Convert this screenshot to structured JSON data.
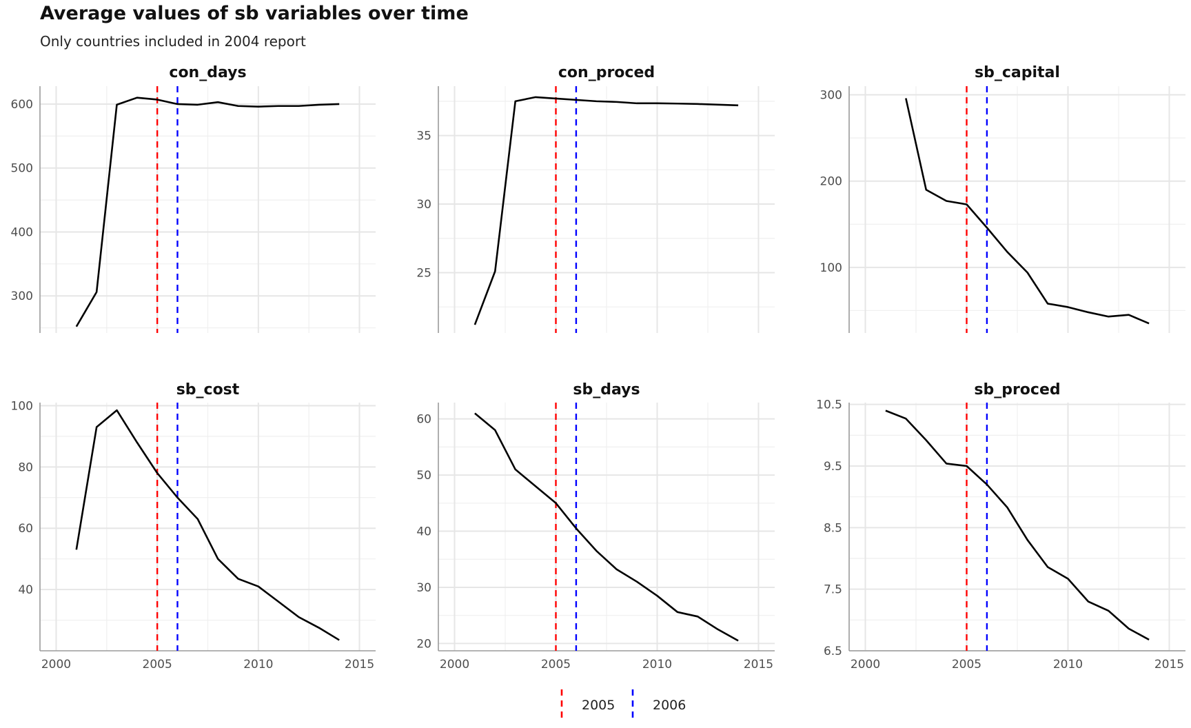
{
  "title": "Average values of sb variables over time",
  "subtitle": "Only countries included in 2004 report",
  "legend": {
    "entries": [
      {
        "label": "2005",
        "color": "#ff0000"
      },
      {
        "label": "2006",
        "color": "#0000ff"
      }
    ],
    "placement": "bottom"
  },
  "chart_data": [
    {
      "type": "line",
      "title": "con_days",
      "x": [
        2001,
        2002,
        2003,
        2004,
        2005,
        2006,
        2007,
        2008,
        2009,
        2010,
        2011,
        2012,
        2013,
        2014
      ],
      "y": [
        252,
        306,
        599,
        610,
        607,
        600,
        599,
        603,
        597,
        596,
        597,
        597,
        599,
        600
      ],
      "xlim": [
        1999.2,
        2015.8
      ],
      "ylim": [
        242,
        628
      ],
      "xticks": [
        2000,
        2005,
        2010,
        2015
      ],
      "xticklabels": [
        "2000",
        "2005",
        "2010",
        "2015"
      ],
      "yticks": [
        300,
        400,
        500,
        600
      ],
      "yticklabels": [
        "300",
        "400",
        "500",
        "600"
      ],
      "vlines": [
        2005,
        2006
      ],
      "grid": true
    },
    {
      "type": "line",
      "title": "con_proced",
      "x": [
        2001,
        2002,
        2003,
        2004,
        2005,
        2006,
        2007,
        2008,
        2009,
        2010,
        2011,
        2012,
        2013,
        2014
      ],
      "y": [
        21.2,
        25.1,
        37.5,
        37.8,
        37.7,
        37.6,
        37.5,
        37.45,
        37.35,
        37.35,
        37.33,
        37.3,
        37.25,
        37.2
      ],
      "xlim": [
        1999.2,
        2015.8
      ],
      "ylim": [
        20.6,
        38.6
      ],
      "xticks": [
        2000,
        2005,
        2010,
        2015
      ],
      "xticklabels": [
        "2000",
        "2005",
        "2010",
        "2015"
      ],
      "yticks": [
        25,
        30,
        35
      ],
      "yticklabels": [
        "25",
        "30",
        "35"
      ],
      "vlines": [
        2005,
        2006
      ],
      "grid": true
    },
    {
      "type": "line",
      "title": "sb_capital",
      "x": [
        2002,
        2003,
        2004,
        2005,
        2006,
        2007,
        2008,
        2009,
        2010,
        2011,
        2012,
        2013,
        2014
      ],
      "y": [
        296,
        190,
        177,
        173,
        146,
        118,
        94,
        58,
        54,
        48,
        43,
        45,
        35
      ],
      "xlim": [
        1999.2,
        2015.8
      ],
      "ylim": [
        24,
        310
      ],
      "xticks": [
        2000,
        2005,
        2010,
        2015
      ],
      "xticklabels": [
        "2000",
        "2005",
        "2010",
        "2015"
      ],
      "yticks": [
        100,
        200,
        300
      ],
      "yticklabels": [
        "100",
        "200",
        "300"
      ],
      "vlines": [
        2005,
        2006
      ],
      "grid": true
    },
    {
      "type": "line",
      "title": "sb_cost",
      "x": [
        2001,
        2002,
        2003,
        2004,
        2005,
        2006,
        2007,
        2008,
        2009,
        2010,
        2011,
        2012,
        2013,
        2014
      ],
      "y": [
        53,
        93,
        98.5,
        88,
        78,
        70,
        63,
        50,
        43.5,
        41,
        36,
        31,
        27.5,
        23.5
      ],
      "xlim": [
        1999.2,
        2015.8
      ],
      "ylim": [
        20,
        101
      ],
      "xticks": [
        2000,
        2005,
        2010,
        2015
      ],
      "xticklabels": [
        "2000",
        "2005",
        "2010",
        "2015"
      ],
      "yticks": [
        40,
        60,
        80,
        100
      ],
      "yticklabels": [
        "40",
        "60",
        "80",
        "100"
      ],
      "vlines": [
        2005,
        2006
      ],
      "grid": true
    },
    {
      "type": "line",
      "title": "sb_days",
      "x": [
        2001,
        2002,
        2003,
        2004,
        2005,
        2006,
        2007,
        2008,
        2009,
        2010,
        2011,
        2012,
        2013,
        2014
      ],
      "y": [
        61,
        58,
        51,
        48,
        45,
        40.5,
        36.5,
        33.2,
        31,
        28.5,
        25.6,
        24.8,
        22.5,
        20.5
      ],
      "xlim": [
        1999.2,
        2015.8
      ],
      "ylim": [
        18.7,
        62.9
      ],
      "xticks": [
        2000,
        2005,
        2010,
        2015
      ],
      "xticklabels": [
        "2000",
        "2005",
        "2010",
        "2015"
      ],
      "yticks": [
        20,
        30,
        40,
        50,
        60
      ],
      "yticklabels": [
        "20",
        "30",
        "40",
        "50",
        "60"
      ],
      "vlines": [
        2005,
        2006
      ],
      "grid": true
    },
    {
      "type": "line",
      "title": "sb_proced",
      "x": [
        2001,
        2002,
        2003,
        2004,
        2005,
        2006,
        2007,
        2008,
        2009,
        2010,
        2011,
        2012,
        2013,
        2014
      ],
      "y": [
        10.4,
        10.27,
        9.92,
        9.54,
        9.5,
        9.2,
        8.83,
        8.3,
        7.86,
        7.67,
        7.3,
        7.15,
        6.86,
        6.68
      ],
      "xlim": [
        1999.2,
        2015.8
      ],
      "ylim": [
        6.5,
        10.53
      ],
      "xticks": [
        2000,
        2005,
        2010,
        2015
      ],
      "xticklabels": [
        "2000",
        "2005",
        "2010",
        "2015"
      ],
      "yticks": [
        6.5,
        7.5,
        8.5,
        9.5,
        10.5
      ],
      "yticklabels": [
        "6.5",
        "7.5",
        "8.5",
        "9.5",
        "10.5"
      ],
      "vlines": [
        2005,
        2006
      ],
      "grid": true
    }
  ]
}
